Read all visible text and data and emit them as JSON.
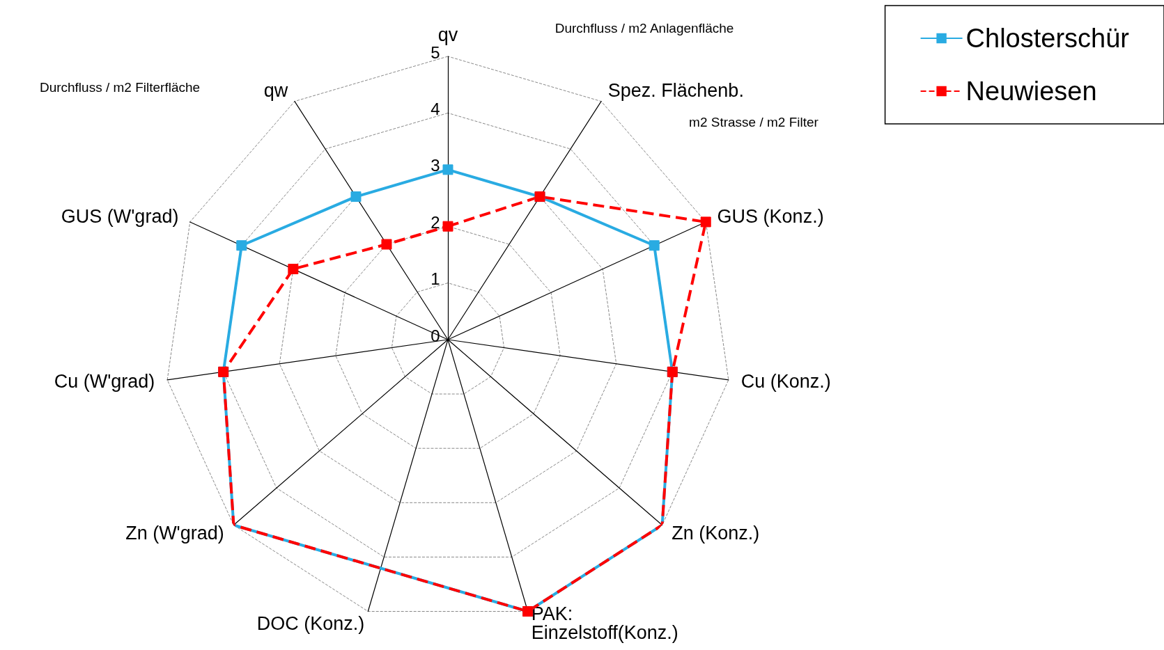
{
  "chart_data": {
    "type": "radar",
    "categories": [
      "qv",
      "Spez. Flächenb.",
      "GUS (Konz.)",
      "Cu (Konz.)",
      "Zn (Konz.)",
      "PAK:\nEinzelstoff(Konz.)",
      "DOC (Konz.)",
      "Zn (W'grad)",
      "Cu (W'grad)",
      "GUS (W'grad)",
      "qw"
    ],
    "series": [
      {
        "name": "Chlosterschür",
        "color": "#29abe2",
        "line_style": "solid",
        "values": [
          3,
          3,
          4,
          4,
          5,
          5,
          null,
          5,
          4,
          4,
          3
        ]
      },
      {
        "name": "Neuwiesen",
        "color": "#ff0000",
        "line_style": "dashed",
        "values": [
          2,
          3,
          5,
          4,
          5,
          5,
          null,
          5,
          4,
          3,
          2
        ]
      }
    ],
    "ylim": [
      0,
      5
    ],
    "yticks": [
      0,
      1,
      2,
      3,
      4,
      5
    ],
    "grid": true,
    "marker": "square",
    "legend": "top right",
    "annotations": [
      "Durchfluss / m2 Anlagenfläche",
      "m2 Strasse / m2 Filter",
      "Durchfluss / m2 Filterfläche"
    ]
  }
}
